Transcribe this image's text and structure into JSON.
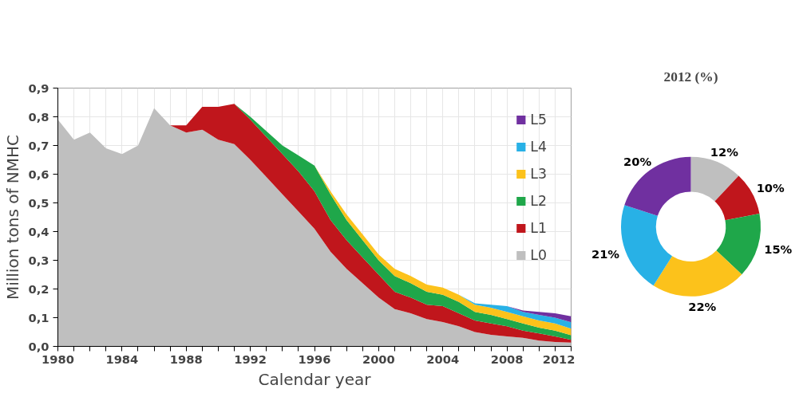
{
  "chart_data": [
    {
      "type": "area",
      "stacked": true,
      "xlabel": "Calendar year",
      "ylabel": "Million tons of NMHC",
      "x": [
        1980,
        1981,
        1982,
        1983,
        1984,
        1985,
        1986,
        1987,
        1988,
        1989,
        1990,
        1991,
        1992,
        1993,
        1994,
        1995,
        1996,
        1997,
        1998,
        1999,
        2000,
        2001,
        2002,
        2003,
        2004,
        2005,
        2006,
        2007,
        2008,
        2009,
        2010,
        2011,
        2012
      ],
      "series": [
        {
          "name": "L0",
          "color": "#bfbfbf",
          "values": [
            0.79,
            0.72,
            0.745,
            0.69,
            0.67,
            0.7,
            0.83,
            0.77,
            0.745,
            0.755,
            0.72,
            0.705,
            0.65,
            0.59,
            0.53,
            0.47,
            0.41,
            0.33,
            0.27,
            0.22,
            0.17,
            0.13,
            0.115,
            0.095,
            0.085,
            0.07,
            0.05,
            0.04,
            0.035,
            0.03,
            0.02,
            0.015,
            0.013
          ]
        },
        {
          "name": "L1",
          "color": "#c0161c",
          "values": [
            0,
            0,
            0,
            0,
            0,
            0,
            0,
            0,
            0.025,
            0.08,
            0.115,
            0.14,
            0.14,
            0.14,
            0.14,
            0.14,
            0.13,
            0.11,
            0.1,
            0.09,
            0.08,
            0.06,
            0.055,
            0.05,
            0.055,
            0.045,
            0.04,
            0.04,
            0.035,
            0.025,
            0.025,
            0.02,
            0.01
          ]
        },
        {
          "name": "L2",
          "color": "#1fa74a",
          "values": [
            0,
            0,
            0,
            0,
            0,
            0,
            0,
            0,
            0,
            0,
            0,
            0,
            0.01,
            0.02,
            0.03,
            0.055,
            0.09,
            0.09,
            0.07,
            0.06,
            0.05,
            0.055,
            0.05,
            0.045,
            0.04,
            0.04,
            0.03,
            0.03,
            0.025,
            0.025,
            0.02,
            0.02,
            0.016
          ]
        },
        {
          "name": "L3",
          "color": "#fcc21b",
          "values": [
            0,
            0,
            0,
            0,
            0,
            0,
            0,
            0,
            0,
            0,
            0,
            0,
            0,
            0,
            0,
            0,
            0,
            0.01,
            0.02,
            0.02,
            0.02,
            0.025,
            0.025,
            0.025,
            0.025,
            0.025,
            0.025,
            0.025,
            0.025,
            0.025,
            0.025,
            0.025,
            0.023
          ]
        },
        {
          "name": "L4",
          "color": "#28b1e6",
          "values": [
            0,
            0,
            0,
            0,
            0,
            0,
            0,
            0,
            0,
            0,
            0,
            0,
            0,
            0,
            0,
            0,
            0,
            0,
            0,
            0,
            0,
            0,
            0,
            0,
            0,
            0,
            0.005,
            0.01,
            0.02,
            0.015,
            0.02,
            0.02,
            0.022
          ]
        },
        {
          "name": "L5",
          "color": "#7030a0",
          "values": [
            0,
            0,
            0,
            0,
            0,
            0,
            0,
            0,
            0,
            0,
            0,
            0,
            0,
            0,
            0,
            0,
            0,
            0,
            0,
            0,
            0,
            0,
            0,
            0,
            0,
            0,
            0,
            0,
            0,
            0.005,
            0.01,
            0.015,
            0.021
          ]
        }
      ],
      "xlim": [
        1980,
        2012
      ],
      "xticks": [
        1980,
        {
          "value": 1981,
          "label": null
        },
        {
          "value": 1982,
          "label": null
        },
        {
          "value": 1983,
          "label": null
        },
        1984,
        {
          "value": 1985,
          "label": null
        },
        {
          "value": 1986,
          "label": null
        },
        {
          "value": 1987,
          "label": null
        },
        1988,
        {
          "value": 1989,
          "label": null
        },
        {
          "value": 1990,
          "label": null
        },
        {
          "value": 1991,
          "label": null
        },
        1992,
        {
          "value": 1993,
          "label": null
        },
        {
          "value": 1994,
          "label": null
        },
        {
          "value": 1995,
          "label": null
        },
        1996,
        {
          "value": 1997,
          "label": null
        },
        {
          "value": 1998,
          "label": null
        },
        {
          "value": 1999,
          "label": null
        },
        2000,
        {
          "value": 2001,
          "label": null
        },
        {
          "value": 2002,
          "label": null
        },
        {
          "value": 2003,
          "label": null
        },
        2004,
        {
          "value": 2005,
          "label": null
        },
        {
          "value": 2006,
          "label": null
        },
        {
          "value": 2007,
          "label": null
        },
        2008,
        {
          "value": 2009,
          "label": null
        },
        {
          "value": 2010,
          "label": null
        },
        {
          "value": 2011,
          "label": null
        },
        2012
      ],
      "ylim": [
        0,
        0.9
      ],
      "yticks": [
        {
          "value": 0,
          "label": "0,0"
        },
        {
          "value": 0.1,
          "label": "0,1"
        },
        {
          "value": 0.2,
          "label": "0,2"
        },
        {
          "value": 0.3,
          "label": "0,3"
        },
        {
          "value": 0.4,
          "label": "0,4"
        },
        {
          "value": 0.5,
          "label": "0,5"
        },
        {
          "value": 0.6,
          "label": "0,6"
        },
        {
          "value": 0.7,
          "label": "0,7"
        },
        {
          "value": 0.8,
          "label": "0,8"
        },
        {
          "value": 0.9,
          "label": "0,9"
        }
      ],
      "grid": true,
      "legend": "top right"
    },
    {
      "type": "donut",
      "title": "2012 (%)",
      "categories": [
        null,
        null,
        null,
        null,
        null,
        null
      ],
      "values": [
        12,
        10,
        15,
        22,
        21,
        20
      ],
      "colors": [
        "#bfbfbf",
        "#c0161c",
        "#1fa74a",
        "#fcc21b",
        "#28b1e6",
        "#7030a0"
      ],
      "value_labels": [
        "12%",
        "10%",
        "15%",
        "22%",
        "21%",
        "20%"
      ]
    }
  ]
}
